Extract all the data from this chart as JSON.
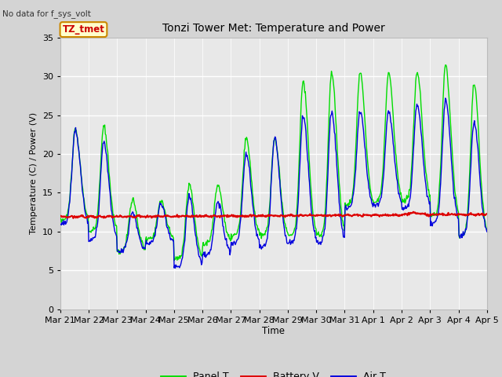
{
  "title": "Tonzi Tower Met: Temperature and Power",
  "subtitle": "No data for f_sys_volt",
  "ylabel": "Temperature (C) / Power (V)",
  "xlabel": "Time",
  "ylim": [
    0,
    35
  ],
  "yticks": [
    0,
    5,
    10,
    15,
    20,
    25,
    30,
    35
  ],
  "fig_bg_color": "#d4d4d4",
  "plot_bg_color": "#e8e8e8",
  "grid_color": "#ffffff",
  "panel_color": "#00dd00",
  "battery_color": "#dd0000",
  "air_color": "#0000dd",
  "legend_labels": [
    "Panel T",
    "Battery V",
    "Air T"
  ],
  "annotation_text": "TZ_tmet",
  "annotation_bg": "#ffffcc",
  "annotation_border": "#cc8800",
  "tick_labels": [
    "Mar 21",
    "Mar 22",
    "Mar 23",
    "Mar 24",
    "Mar 25",
    "Mar 26",
    "Mar 27",
    "Mar 28",
    "Mar 29",
    "Mar 30",
    "Mar 31",
    "Apr 1",
    "Apr 2",
    "Apr 3",
    "Apr 4",
    "Apr 5"
  ]
}
